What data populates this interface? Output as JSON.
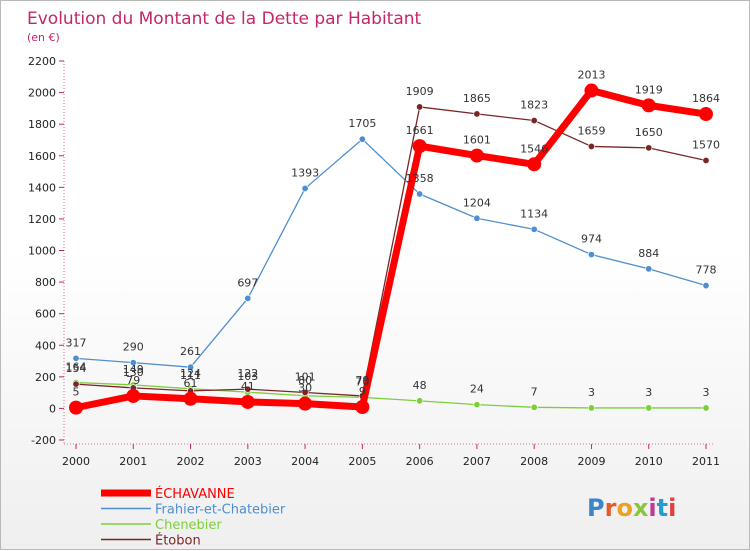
{
  "chart_data": {
    "type": "line",
    "title": "Evolution du Montant de la Dette par Habitant",
    "subtitle": "(en €)",
    "xlabel": "",
    "ylabel": "",
    "ylim": [
      -200,
      2200
    ],
    "yticks": [
      -200,
      0,
      200,
      400,
      600,
      800,
      1000,
      1200,
      1400,
      1600,
      1800,
      2000,
      2200
    ],
    "x": [
      "2000",
      "2001",
      "2002",
      "2003",
      "2004",
      "2005",
      "2006",
      "2007",
      "2008",
      "2009",
      "2010",
      "2011"
    ],
    "grid": false,
    "legend_position": "bottom-left",
    "series": [
      {
        "name": "ÉCHAVANNE",
        "color": "#ff0000",
        "values": [
          5,
          79,
          61,
          41,
          30,
          9,
          1661,
          1601,
          1546,
          2013,
          1919,
          1864
        ],
        "labels": [
          "5",
          "79",
          "61",
          "41",
          "30",
          "9",
          "1661",
          "1601",
          "1546",
          "2013",
          "1919",
          "1864"
        ]
      },
      {
        "name": "Frahier-et-Chatebier",
        "color": "#4f8fd0",
        "values": [
          317,
          290,
          261,
          697,
          1393,
          1705,
          1358,
          1204,
          1134,
          974,
          884,
          778
        ],
        "labels": [
          "317",
          "290",
          "261",
          "697",
          "1393",
          "1705",
          "1358",
          "1204",
          "1134",
          "974",
          "884",
          "778"
        ]
      },
      {
        "name": "Chenebier",
        "color": "#7ccf3a",
        "values": [
          164,
          149,
          124,
          103,
          80,
          70,
          48,
          24,
          7,
          3,
          3,
          3
        ],
        "labels": [
          "164",
          "149",
          "124",
          "103",
          "80",
          "70",
          "48",
          "24",
          "7",
          "3",
          "3",
          "3"
        ]
      },
      {
        "name": "Étobon",
        "color": "#7a2626",
        "values": [
          154,
          130,
          111,
          122,
          101,
          79,
          1909,
          1865,
          1823,
          1659,
          1650,
          1570
        ],
        "labels": [
          "154",
          "130",
          "111",
          "122",
          "101",
          "79",
          "1909",
          "1865",
          "1823",
          "1659",
          "1650",
          "1570"
        ]
      }
    ]
  },
  "logo": {
    "text": "Proxiti",
    "colors": [
      "#3a86c8",
      "#e55a2b",
      "#f0a020",
      "#8bc540",
      "#c0398f",
      "#2a9ad6",
      "#e63c3c"
    ]
  }
}
